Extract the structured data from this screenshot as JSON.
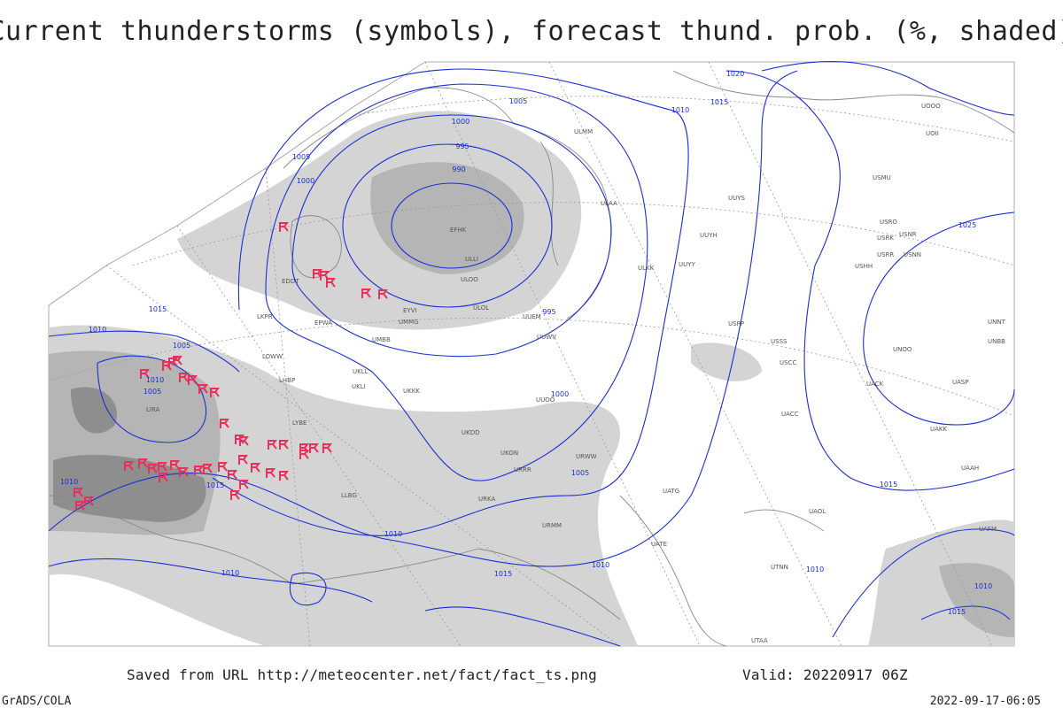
{
  "header": {
    "title": "Current thunderstorms (symbols), forecast thund. prob. (%, shaded)"
  },
  "footer": {
    "source": "Saved from URL http://meteocenter.net/fact/fact_ts.png",
    "valid": "Valid: 20220917 06Z",
    "credit": "GrADS/COLA",
    "timestamp": "2022-09-17-06:05"
  },
  "isobar_labels": [
    "1020",
    "1015",
    "1010",
    "1005",
    "1000",
    "995",
    "990",
    "1005",
    "1000",
    "1025",
    "1015",
    "1010",
    "1005",
    "1000",
    "995",
    "1015",
    "1010",
    "1005",
    "1010",
    "1010",
    "1015",
    "1010",
    "1005",
    "1010",
    "1010",
    "1015",
    "1010",
    "1015"
  ],
  "stations": [
    "UOOO",
    "UOII",
    "USMU",
    "USRO",
    "USRK",
    "USNR",
    "USRR",
    "USNN",
    "USHH",
    "ULMM",
    "ULAA",
    "EFHK",
    "ULLI",
    "ULOO",
    "ULOL",
    "UUEM",
    "UUWV",
    "UUYY",
    "ULKK",
    "UUYH",
    "UUYS",
    "UUOO",
    "UMMG",
    "UMBB",
    "EPWA",
    "LKPR",
    "LOWW",
    "LHBP",
    "EDDT",
    "EYVI",
    "UKLL",
    "UKLI",
    "UKKK",
    "UKDD",
    "UKON",
    "URRR",
    "URKA",
    "URMM",
    "URWW",
    "UATG",
    "UATE",
    "UTAA",
    "LYBE",
    "LIRA",
    "LLBG",
    "UAOL",
    "UACC",
    "UAKK",
    "UASP",
    "UNOO",
    "UNNT",
    "USSS",
    "USCC",
    "USPP",
    "UNBB",
    "UACK",
    "UAAH",
    "UAFM",
    "UTNN"
  ]
}
